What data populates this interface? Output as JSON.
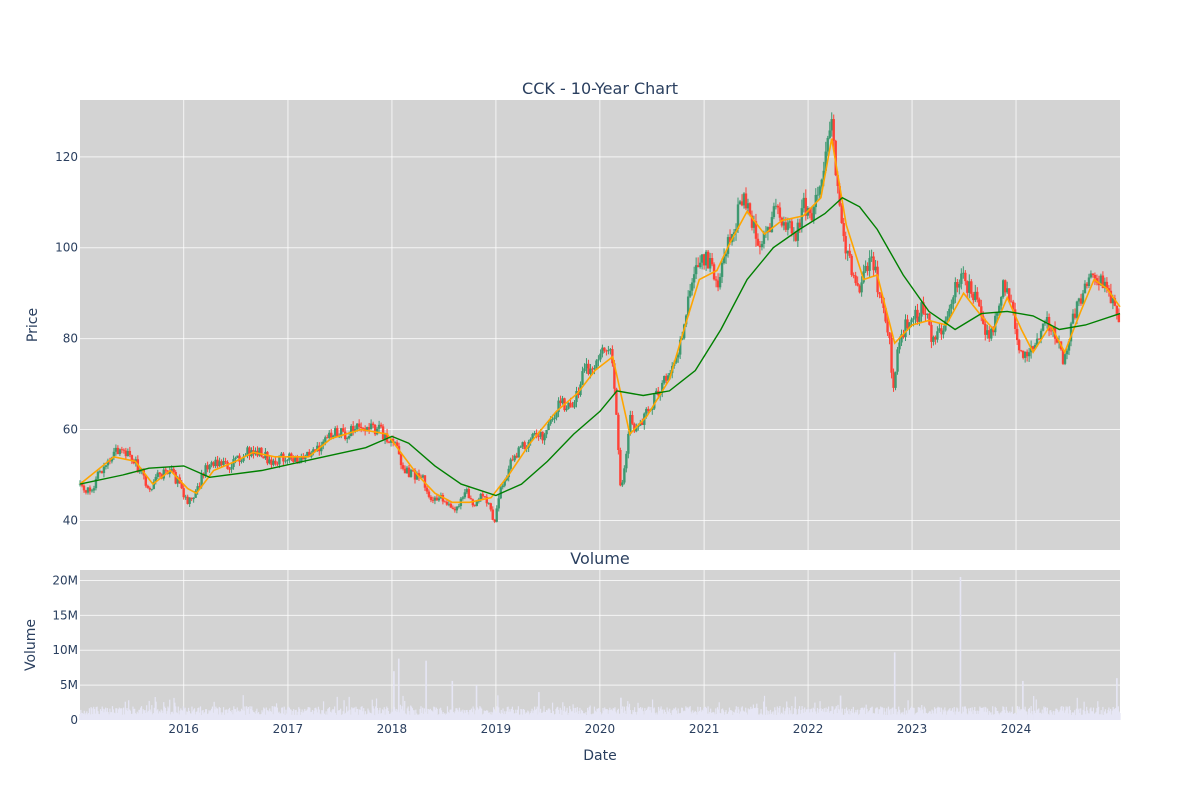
{
  "chart_data": [
    {
      "type": "candlestick",
      "title": "CCK - 10-Year Chart",
      "ylabel": "Price",
      "ylim": [
        33.5,
        132.5
      ],
      "yticks": [
        40,
        60,
        80,
        100,
        120
      ],
      "xlim": [
        "2015-01-02",
        "2024-12-31"
      ],
      "grid": true,
      "colors": {
        "up": "#3d9970",
        "down": "#ff4136",
        "ma_short": "#ffa500",
        "ma_long": "#008000",
        "plot_bg": "#d3d3d3"
      },
      "price_path": [
        [
          "2015-01-02",
          48
        ],
        [
          "2015-02-05",
          46
        ],
        [
          "2015-03-15",
          51
        ],
        [
          "2015-04-20",
          53
        ],
        [
          "2015-05-20",
          56
        ],
        [
          "2015-06-25",
          55
        ],
        [
          "2015-07-20",
          52
        ],
        [
          "2015-08-15",
          50
        ],
        [
          "2015-09-01",
          46
        ],
        [
          "2015-10-05",
          50
        ],
        [
          "2015-11-15",
          51
        ],
        [
          "2015-12-15",
          48
        ],
        [
          "2016-01-15",
          44
        ],
        [
          "2016-02-10",
          46
        ],
        [
          "2016-03-15",
          51
        ],
        [
          "2016-04-20",
          53
        ],
        [
          "2016-06-01",
          52
        ],
        [
          "2016-07-15",
          54
        ],
        [
          "2016-08-15",
          55
        ],
        [
          "2016-10-01",
          55
        ],
        [
          "2016-11-01",
          53
        ],
        [
          "2016-12-15",
          54
        ],
        [
          "2017-02-01",
          53
        ],
        [
          "2017-03-15",
          54
        ],
        [
          "2017-05-01",
          57
        ],
        [
          "2017-06-01",
          59
        ],
        [
          "2017-07-15",
          59
        ],
        [
          "2017-09-15",
          61
        ],
        [
          "2017-11-15",
          60
        ],
        [
          "2017-12-15",
          58
        ],
        [
          "2018-01-10",
          58
        ],
        [
          "2018-02-10",
          51
        ],
        [
          "2018-03-15",
          50
        ],
        [
          "2018-04-15",
          50
        ],
        [
          "2018-05-15",
          44
        ],
        [
          "2018-06-20",
          45
        ],
        [
          "2018-07-15",
          44
        ],
        [
          "2018-08-15",
          43
        ],
        [
          "2018-09-15",
          47
        ],
        [
          "2018-10-15",
          42
        ],
        [
          "2018-11-15",
          46
        ],
        [
          "2018-12-28",
          40
        ],
        [
          "2019-01-15",
          46
        ],
        [
          "2019-02-15",
          52
        ],
        [
          "2019-03-15",
          55
        ],
        [
          "2019-04-15",
          57
        ],
        [
          "2019-05-15",
          59
        ],
        [
          "2019-06-15",
          58
        ],
        [
          "2019-07-15",
          62
        ],
        [
          "2019-08-15",
          66
        ],
        [
          "2019-09-15",
          65
        ],
        [
          "2019-10-15",
          68
        ],
        [
          "2019-11-15",
          74
        ],
        [
          "2019-12-15",
          73
        ],
        [
          "2020-01-15",
          77
        ],
        [
          "2020-02-15",
          76
        ],
        [
          "2020-03-15",
          46
        ],
        [
          "2020-04-15",
          62
        ],
        [
          "2020-05-15",
          60
        ],
        [
          "2020-06-15",
          64
        ],
        [
          "2020-07-15",
          67
        ],
        [
          "2020-08-15",
          71
        ],
        [
          "2020-09-15",
          75
        ],
        [
          "2020-10-15",
          80
        ],
        [
          "2020-11-15",
          92
        ],
        [
          "2020-12-15",
          97
        ],
        [
          "2021-01-15",
          97
        ],
        [
          "2021-02-15",
          91
        ],
        [
          "2021-03-15",
          98
        ],
        [
          "2021-04-15",
          104
        ],
        [
          "2021-05-15",
          111
        ],
        [
          "2021-06-15",
          106
        ],
        [
          "2021-07-15",
          101
        ],
        [
          "2021-08-15",
          104
        ],
        [
          "2021-09-15",
          109
        ],
        [
          "2021-10-15",
          105
        ],
        [
          "2021-11-15",
          102
        ],
        [
          "2021-12-15",
          110
        ],
        [
          "2022-01-15",
          107
        ],
        [
          "2022-02-15",
          115
        ],
        [
          "2022-03-20",
          129
        ],
        [
          "2022-04-15",
          112
        ],
        [
          "2022-05-15",
          100
        ],
        [
          "2022-06-15",
          91
        ],
        [
          "2022-07-15",
          93
        ],
        [
          "2022-08-15",
          97
        ],
        [
          "2022-09-15",
          88
        ],
        [
          "2022-10-15",
          80
        ],
        [
          "2022-10-25",
          67
        ],
        [
          "2022-11-15",
          80
        ],
        [
          "2022-12-15",
          83
        ],
        [
          "2023-01-15",
          85
        ],
        [
          "2023-02-15",
          87
        ],
        [
          "2023-03-15",
          79
        ],
        [
          "2023-04-15",
          81
        ],
        [
          "2023-05-15",
          87
        ],
        [
          "2023-06-15",
          94
        ],
        [
          "2023-07-15",
          92
        ],
        [
          "2023-08-15",
          88
        ],
        [
          "2023-09-15",
          80
        ],
        [
          "2023-10-15",
          83
        ],
        [
          "2023-11-15",
          91
        ],
        [
          "2023-12-15",
          89
        ],
        [
          "2024-01-15",
          76
        ],
        [
          "2024-02-15",
          78
        ],
        [
          "2024-03-15",
          80
        ],
        [
          "2024-04-15",
          84
        ],
        [
          "2024-05-15",
          82
        ],
        [
          "2024-06-15",
          74
        ],
        [
          "2024-07-15",
          84
        ],
        [
          "2024-08-15",
          89
        ],
        [
          "2024-09-15",
          95
        ],
        [
          "2024-10-15",
          93
        ],
        [
          "2024-11-15",
          91
        ],
        [
          "2024-12-31",
          83
        ]
      ],
      "ma_short": [
        [
          "2015-01-02",
          48
        ],
        [
          "2015-05-01",
          54
        ],
        [
          "2015-07-15",
          53
        ],
        [
          "2015-09-15",
          48
        ],
        [
          "2015-11-15",
          51
        ],
        [
          "2016-01-15",
          47
        ],
        [
          "2016-02-15",
          46
        ],
        [
          "2016-04-15",
          51
        ],
        [
          "2016-07-01",
          53
        ],
        [
          "2016-09-01",
          55
        ],
        [
          "2016-11-15",
          54
        ],
        [
          "2017-03-15",
          54
        ],
        [
          "2017-06-01",
          58
        ],
        [
          "2017-09-15",
          60
        ],
        [
          "2017-12-15",
          59
        ],
        [
          "2018-02-01",
          55
        ],
        [
          "2018-04-01",
          50
        ],
        [
          "2018-06-01",
          46
        ],
        [
          "2018-08-01",
          44
        ],
        [
          "2018-10-01",
          44
        ],
        [
          "2018-12-15",
          45
        ],
        [
          "2019-02-15",
          50
        ],
        [
          "2019-05-01",
          57
        ],
        [
          "2019-08-01",
          64
        ],
        [
          "2019-10-15",
          68
        ],
        [
          "2019-12-15",
          73
        ],
        [
          "2020-02-15",
          76
        ],
        [
          "2020-04-15",
          59
        ],
        [
          "2020-06-15",
          63
        ],
        [
          "2020-09-01",
          71
        ],
        [
          "2020-11-01",
          84
        ],
        [
          "2020-12-15",
          93
        ],
        [
          "2021-02-15",
          95
        ],
        [
          "2021-04-01",
          101
        ],
        [
          "2021-06-01",
          108
        ],
        [
          "2021-08-01",
          103
        ],
        [
          "2021-10-01",
          106
        ],
        [
          "2021-12-15",
          107
        ],
        [
          "2022-02-15",
          111
        ],
        [
          "2022-03-25",
          124
        ],
        [
          "2022-05-15",
          105
        ],
        [
          "2022-07-15",
          93
        ],
        [
          "2022-09-01",
          94
        ],
        [
          "2022-11-01",
          79
        ],
        [
          "2023-01-01",
          83
        ],
        [
          "2023-03-01",
          84
        ],
        [
          "2023-05-01",
          83
        ],
        [
          "2023-07-01",
          90
        ],
        [
          "2023-09-01",
          85
        ],
        [
          "2023-10-15",
          82
        ],
        [
          "2023-12-01",
          89
        ],
        [
          "2024-01-20",
          82
        ],
        [
          "2024-03-01",
          77
        ],
        [
          "2024-05-01",
          83
        ],
        [
          "2024-06-20",
          77
        ],
        [
          "2024-08-15",
          86
        ],
        [
          "2024-10-01",
          93
        ],
        [
          "2024-11-15",
          91
        ],
        [
          "2024-12-31",
          87
        ]
      ],
      "ma_long": [
        [
          "2015-01-02",
          48
        ],
        [
          "2015-06-01",
          50
        ],
        [
          "2015-09-01",
          51.5
        ],
        [
          "2016-01-01",
          52
        ],
        [
          "2016-04-01",
          49.5
        ],
        [
          "2016-10-01",
          51
        ],
        [
          "2017-04-01",
          53.5
        ],
        [
          "2017-10-01",
          56
        ],
        [
          "2018-01-01",
          58.5
        ],
        [
          "2018-03-01",
          57
        ],
        [
          "2018-06-01",
          52
        ],
        [
          "2018-09-01",
          48
        ],
        [
          "2019-01-01",
          45.5
        ],
        [
          "2019-04-01",
          48
        ],
        [
          "2019-07-01",
          53
        ],
        [
          "2019-10-01",
          59
        ],
        [
          "2020-01-01",
          64
        ],
        [
          "2020-03-01",
          68.5
        ],
        [
          "2020-06-01",
          67.5
        ],
        [
          "2020-09-01",
          68.5
        ],
        [
          "2020-12-01",
          73
        ],
        [
          "2021-03-01",
          82
        ],
        [
          "2021-06-01",
          93
        ],
        [
          "2021-09-01",
          100
        ],
        [
          "2021-12-01",
          104
        ],
        [
          "2022-03-01",
          107.5
        ],
        [
          "2022-05-01",
          111
        ],
        [
          "2022-07-01",
          109
        ],
        [
          "2022-09-01",
          104
        ],
        [
          "2022-12-01",
          94
        ],
        [
          "2023-03-01",
          86
        ],
        [
          "2023-06-01",
          82
        ],
        [
          "2023-09-01",
          85.5
        ],
        [
          "2023-12-01",
          86
        ],
        [
          "2024-03-01",
          85
        ],
        [
          "2024-06-01",
          82
        ],
        [
          "2024-09-01",
          83
        ],
        [
          "2024-12-31",
          85.5
        ]
      ]
    },
    {
      "type": "bar",
      "title": "Volume",
      "xlabel": "Date",
      "ylabel": "Volume",
      "ylim": [
        0,
        21500000
      ],
      "yticks": [
        0,
        5000000,
        10000000,
        15000000,
        20000000
      ],
      "ytick_labels": [
        "0",
        "5M",
        "10M",
        "15M",
        "20M"
      ],
      "xticks": [
        "2016-01-01",
        "2017-01-01",
        "2018-01-01",
        "2019-01-01",
        "2020-01-01",
        "2021-01-01",
        "2022-01-01",
        "2023-01-01",
        "2024-01-01"
      ],
      "xtick_labels": [
        "2016",
        "2017",
        "2018",
        "2019",
        "2020",
        "2021",
        "2022",
        "2023",
        "2024"
      ],
      "grid": true,
      "colors": {
        "bar": "#e6e6f5",
        "plot_bg": "#d3d3d3"
      },
      "spikes": [
        [
          "2018-01-08",
          7000000
        ],
        [
          "2018-01-25",
          8800000
        ],
        [
          "2018-05-01",
          8500000
        ],
        [
          "2018-08-01",
          5600000
        ],
        [
          "2018-10-25",
          5000000
        ],
        [
          "2019-06-01",
          4000000
        ],
        [
          "2020-03-15",
          3200000
        ],
        [
          "2022-04-25",
          3500000
        ],
        [
          "2022-11-01",
          9700000
        ],
        [
          "2023-06-20",
          20500000
        ],
        [
          "2024-01-25",
          5600000
        ],
        [
          "2024-12-20",
          6000000
        ]
      ]
    }
  ]
}
